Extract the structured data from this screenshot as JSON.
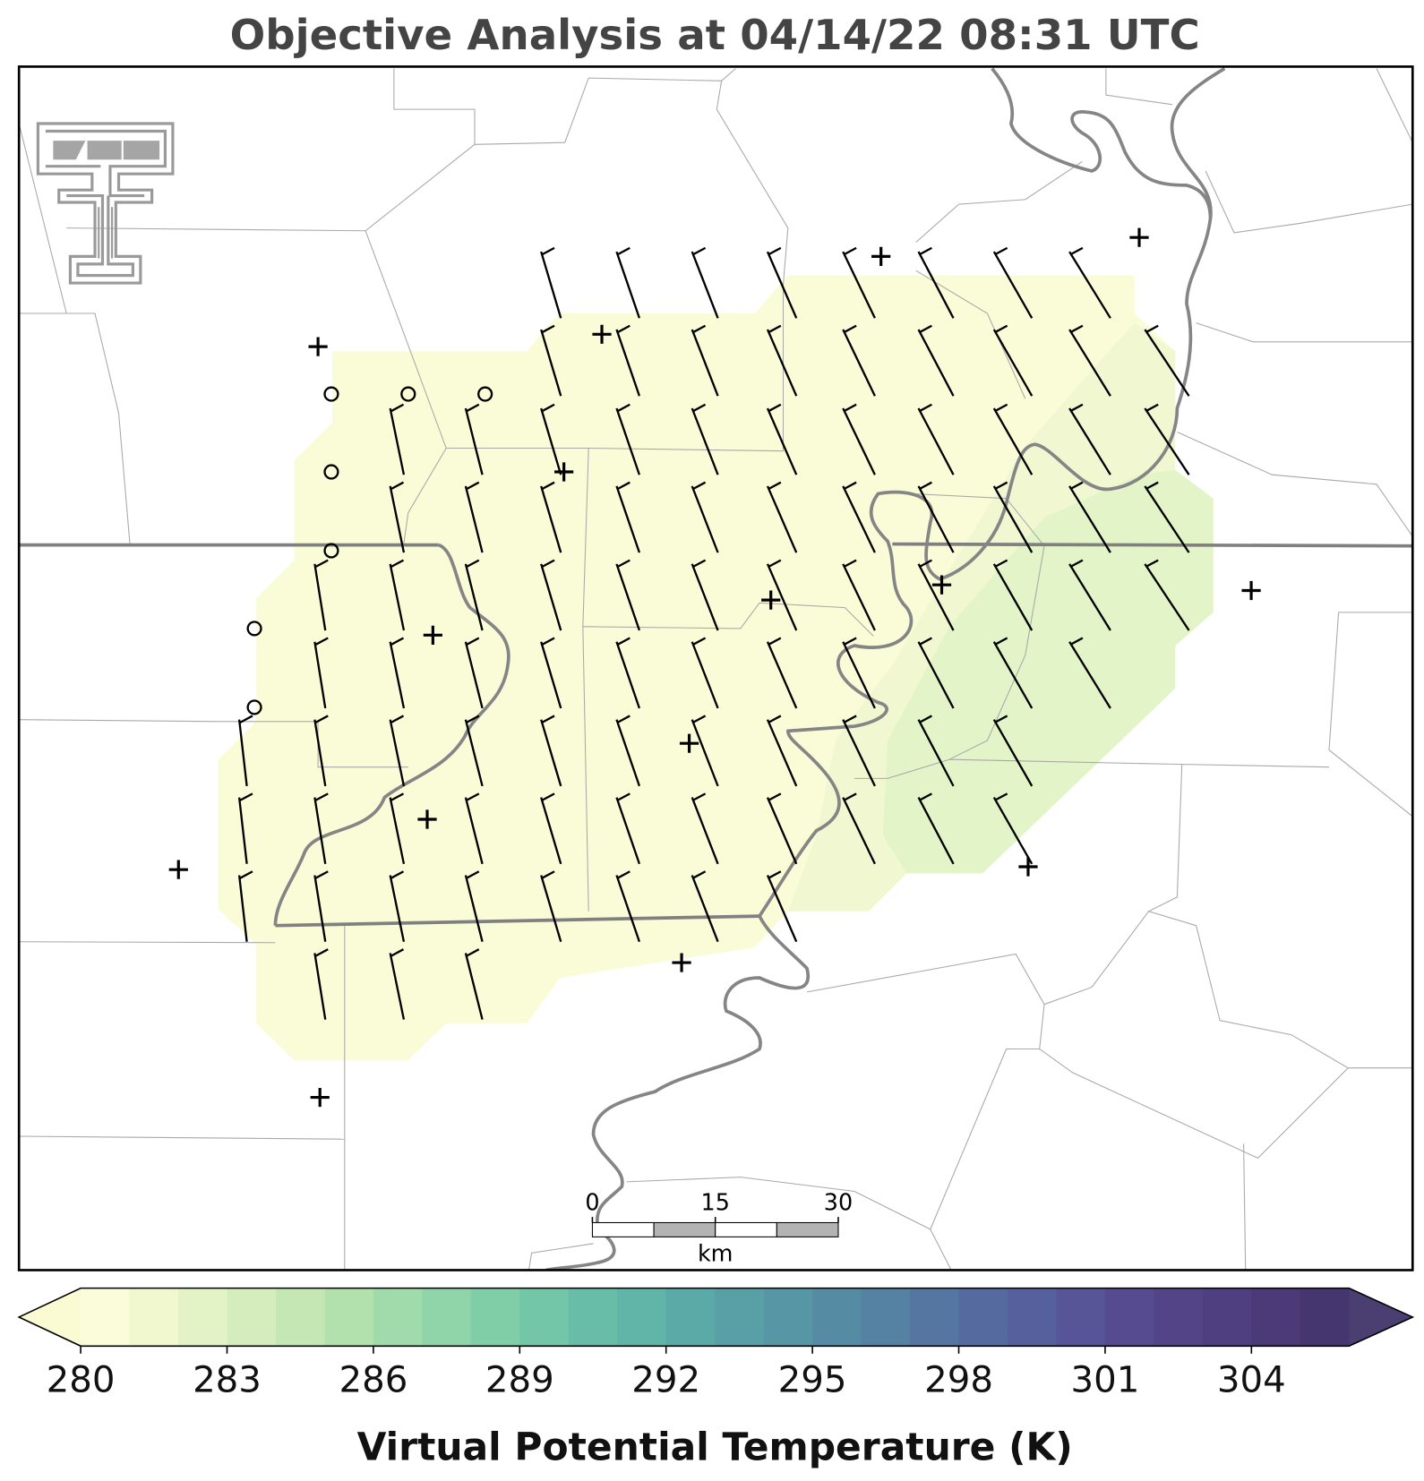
{
  "title": "Objective Analysis at 04/14/22 08:31 UTC",
  "colorbar": {
    "label": "Virtual Potential Temperature (K)",
    "lim": [
      280,
      306
    ],
    "ticks": [
      280,
      283,
      286,
      289,
      292,
      295,
      298,
      301,
      304
    ],
    "colors": [
      "#fbfcd9",
      "#f1f8cf",
      "#e3f3c6",
      "#d5edbd",
      "#c4e7b4",
      "#b2e1ae",
      "#a0dbab",
      "#8fd5a9",
      "#80cea8",
      "#73c6a8",
      "#68bda8",
      "#61b4a8",
      "#5caaa7",
      "#59a0a6",
      "#5796a5",
      "#558ca4",
      "#5581a3",
      "#5576a1",
      "#556b9f",
      "#56609c",
      "#575597",
      "#564b90",
      "#534488",
      "#4f3e80",
      "#4b3a77",
      "#463670"
    ],
    "under_color": "#fbfbd3",
    "over_color": "#4a3f70"
  },
  "scale_bar": {
    "ticks": [
      0,
      15,
      30
    ],
    "lim": [
      0,
      30
    ],
    "unit": "km"
  }
}
